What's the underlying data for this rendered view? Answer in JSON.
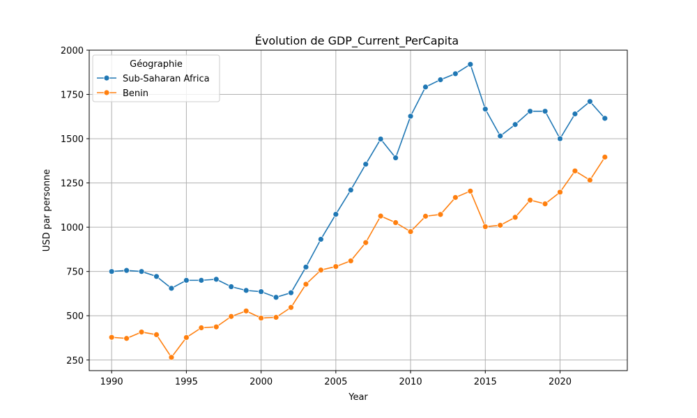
{
  "chart_data": {
    "type": "line",
    "title": "Évolution de GDP_Current_PerCapita",
    "xlabel": "Year",
    "ylabel": "USD par personne",
    "xlim": [
      1988.5,
      2024.5
    ],
    "ylim": [
      190,
      2000
    ],
    "xticks": [
      1990,
      1995,
      2000,
      2005,
      2010,
      2015,
      2020
    ],
    "yticks": [
      250,
      500,
      750,
      1000,
      1250,
      1500,
      1750,
      2000
    ],
    "grid": true,
    "legend": {
      "title": "Géographie",
      "position": "top-left"
    },
    "x": [
      1990,
      1991,
      1992,
      1993,
      1994,
      1995,
      1996,
      1997,
      1998,
      1999,
      2000,
      2001,
      2002,
      2003,
      2004,
      2005,
      2006,
      2007,
      2008,
      2009,
      2010,
      2011,
      2012,
      2013,
      2014,
      2015,
      2016,
      2017,
      2018,
      2019,
      2020,
      2021,
      2022,
      2023
    ],
    "series": [
      {
        "name": "Sub-Saharan Africa",
        "color": "#1f77b4",
        "values": [
          750,
          756,
          750,
          722,
          655,
          700,
          700,
          706,
          664,
          643,
          636,
          604,
          630,
          775,
          932,
          1073,
          1210,
          1356,
          1498,
          1392,
          1627,
          1792,
          1833,
          1867,
          1920,
          1667,
          1515,
          1580,
          1655,
          1655,
          1500,
          1640,
          1710,
          1615
        ]
      },
      {
        "name": "Benin",
        "color": "#ff7f0e",
        "values": [
          378,
          372,
          408,
          393,
          265,
          377,
          432,
          437,
          496,
          527,
          487,
          491,
          547,
          678,
          758,
          778,
          810,
          913,
          1063,
          1026,
          975,
          1062,
          1072,
          1168,
          1204,
          1003,
          1011,
          1056,
          1153,
          1132,
          1198,
          1318,
          1266,
          1396
        ]
      }
    ]
  }
}
